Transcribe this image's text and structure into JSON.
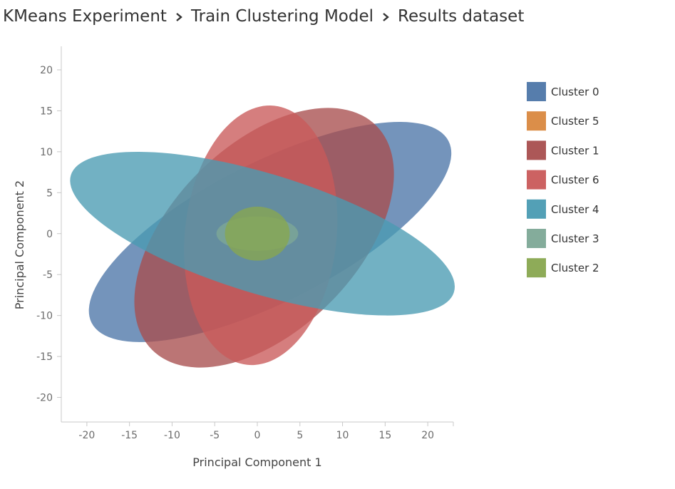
{
  "breadcrumb": {
    "items": [
      "KMeans Experiment",
      "Train Clustering Model",
      "Results dataset"
    ]
  },
  "chart_data": {
    "type": "scatter",
    "subtype": "cluster-ellipses",
    "xlabel": "Principal Component 1",
    "ylabel": "Principal Component 2",
    "xlim": [
      -23,
      23
    ],
    "ylim": [
      -23,
      22
    ],
    "xticks": [
      -20,
      -15,
      -10,
      -5,
      0,
      5,
      10,
      15,
      20
    ],
    "yticks": [
      20,
      15,
      10,
      5,
      0,
      -5,
      -10,
      -15,
      -20
    ],
    "grid": false,
    "legend_position": "right",
    "series": [
      {
        "name": "Cluster 0",
        "color": "#4d76a8",
        "center": [
          1.5,
          0.2
        ],
        "rx": 23.5,
        "ry": 8.5,
        "angle_deg": 27
      },
      {
        "name": "Cluster 5",
        "color": "#d9883f",
        "center": [
          0.8,
          -0.5
        ],
        "rx": 18.6,
        "ry": 11.3,
        "angle_deg": 45
      },
      {
        "name": "Cluster 1",
        "color": "#a84e4e",
        "center": [
          0.8,
          -0.5
        ],
        "rx": 18.6,
        "ry": 11.3,
        "angle_deg": 45
      },
      {
        "name": "Cluster 6",
        "color": "#c95a5a",
        "center": [
          0.4,
          -0.2
        ],
        "rx": 8.9,
        "ry": 15.9,
        "angle_deg": -6
      },
      {
        "name": "Cluster 4",
        "color": "#4a9bb2",
        "center": [
          0.6,
          0.0
        ],
        "rx": 23.5,
        "ry": 7.3,
        "angle_deg": -17
      },
      {
        "name": "Cluster 3",
        "color": "#7da896",
        "center": [
          0.0,
          0.0
        ],
        "rx": 4.8,
        "ry": 2.1,
        "angle_deg": 0
      },
      {
        "name": "Cluster 2",
        "color": "#88a74f",
        "center": [
          0.0,
          0.0
        ],
        "rx": 3.8,
        "ry": 3.3,
        "angle_deg": 0
      }
    ]
  }
}
